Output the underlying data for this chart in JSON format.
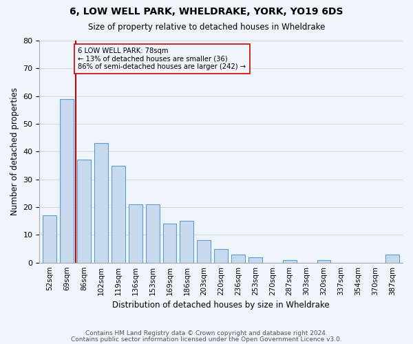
{
  "title": "6, LOW WELL PARK, WHELDRAKE, YORK, YO19 6DS",
  "subtitle": "Size of property relative to detached houses in Wheldrake",
  "xlabel": "Distribution of detached houses by size in Wheldrake",
  "ylabel": "Number of detached properties",
  "bar_color": "#c8d9ed",
  "bar_edge_color": "#5a9fd4",
  "bins": [
    "52sqm",
    "69sqm",
    "86sqm",
    "102sqm",
    "119sqm",
    "136sqm",
    "153sqm",
    "169sqm",
    "186sqm",
    "203sqm",
    "220sqm",
    "236sqm",
    "253sqm",
    "270sqm",
    "287sqm",
    "303sqm",
    "320sqm",
    "337sqm",
    "354sqm",
    "370sqm",
    "387sqm"
  ],
  "values": [
    17,
    59,
    37,
    43,
    35,
    21,
    21,
    14,
    15,
    8,
    5,
    3,
    2,
    0,
    1,
    0,
    1,
    0,
    0,
    0,
    3
  ],
  "marker_label": "6 LOW WELL PARK: 78sqm",
  "annotation_line1": "← 13% of detached houses are smaller (36)",
  "annotation_line2": "86% of semi-detached houses are larger (242) →",
  "vline_color": "#cc0000",
  "annotation_box_edge": "#cc0000",
  "ylim": [
    0,
    80
  ],
  "yticks": [
    0,
    10,
    20,
    30,
    40,
    50,
    60,
    70,
    80
  ],
  "grid_color": "#d0d8e8",
  "background_color": "#f0f4fb",
  "footer_line1": "Contains HM Land Registry data © Crown copyright and database right 2024.",
  "footer_line2": "Contains public sector information licensed under the Open Government Licence v3.0."
}
